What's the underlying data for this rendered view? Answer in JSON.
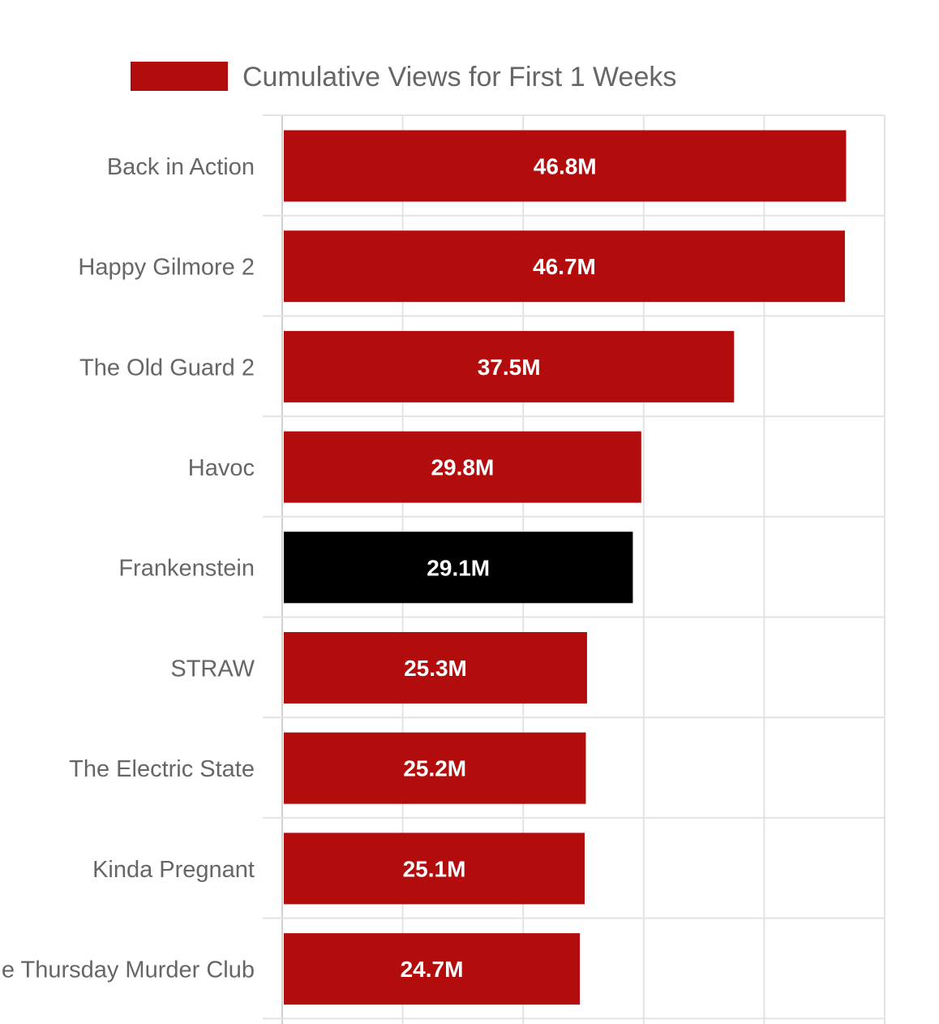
{
  "chart_data": {
    "type": "bar",
    "orientation": "horizontal",
    "categories": [
      "Back in Action",
      "Happy Gilmore 2",
      "The Old Guard 2",
      "Havoc",
      "Frankenstein",
      "STRAW",
      "The Electric State",
      "Kinda Pregnant",
      "The Thursday Murder Club"
    ],
    "series": [
      {
        "name": "Cumulative Views for First 1 Weeks",
        "values": [
          46.8,
          46.7,
          37.5,
          29.8,
          29.1,
          25.3,
          25.2,
          25.1,
          24.7
        ],
        "data_labels": [
          "46.8M",
          "46.7M",
          "37.5M",
          "29.8M",
          "29.1M",
          "25.3M",
          "25.2M",
          "25.1M",
          "24.7M"
        ],
        "color": "#b30c0c"
      }
    ],
    "highlight": {
      "category": "Frankenstein",
      "color": "#000000"
    },
    "xlim": [
      0,
      50
    ],
    "grid": true,
    "legend_position": "top",
    "title": "",
    "xlabel": "",
    "ylabel": ""
  },
  "colors": {
    "bar": "#b30c0c",
    "highlight": "#000000",
    "grid": "#e3e3e3",
    "label_text": "#666666",
    "value_text": "#ffffff"
  }
}
